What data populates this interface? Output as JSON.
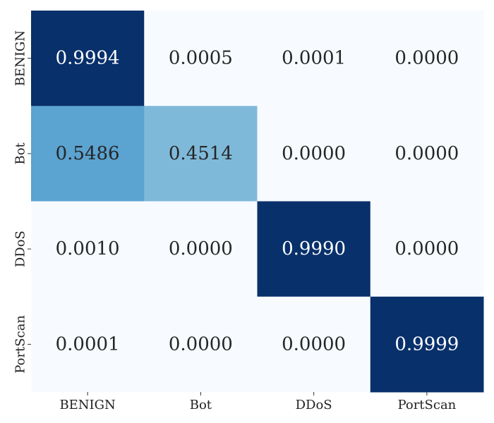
{
  "chart_data": {
    "type": "heatmap",
    "title": "",
    "xlabel": "",
    "ylabel": "",
    "x_labels": [
      "BENIGN",
      "Bot",
      "DDoS",
      "PortScan"
    ],
    "y_labels": [
      "BENIGN",
      "Bot",
      "DDoS",
      "PortScan"
    ],
    "values": [
      [
        0.9994,
        0.0005,
        0.0001,
        0.0
      ],
      [
        0.5486,
        0.4514,
        0.0,
        0.0
      ],
      [
        0.001,
        0.0,
        0.999,
        0.0
      ],
      [
        0.0001,
        0.0,
        0.0,
        0.9999
      ]
    ],
    "cell_text": [
      [
        "0.9994",
        "0.0005",
        "0.0001",
        "0.0000"
      ],
      [
        "0.5486",
        "0.4514",
        "0.0000",
        "0.0000"
      ],
      [
        "0.0010",
        "0.0000",
        "0.9990",
        "0.0000"
      ],
      [
        "0.0001",
        "0.0000",
        "0.0000",
        "0.9999"
      ]
    ],
    "colormap": "Blues",
    "color_range": [
      0,
      1
    ],
    "colorbar": false,
    "grid": false
  }
}
